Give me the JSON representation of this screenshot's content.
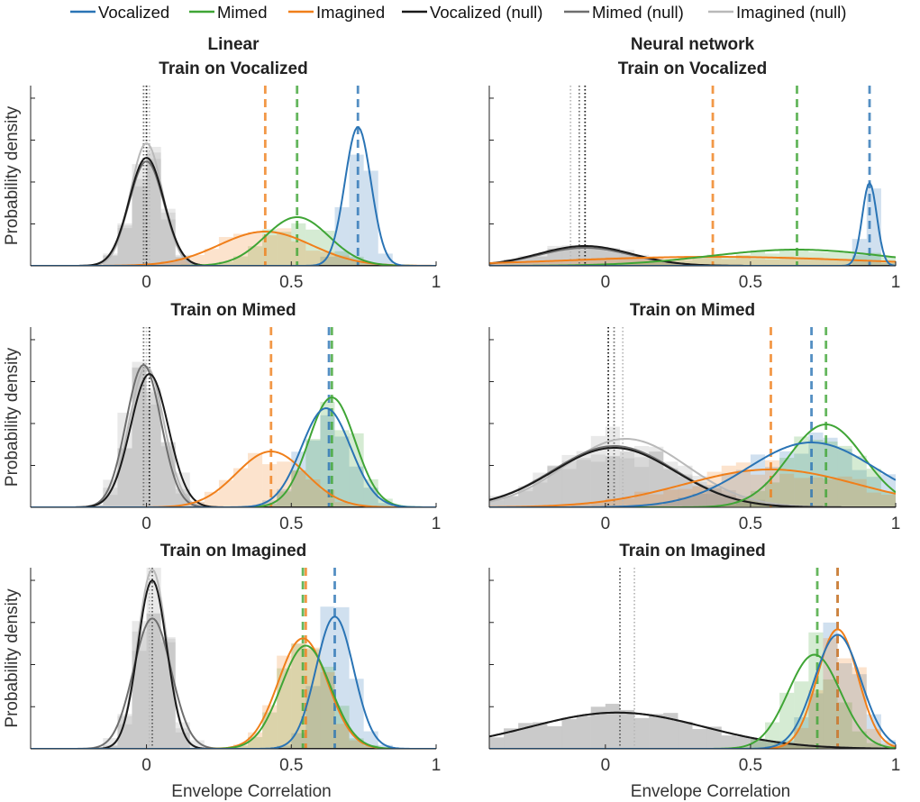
{
  "legend": [
    {
      "label": "Vocalized",
      "color": "#2a74b5"
    },
    {
      "label": "Mimed",
      "color": "#3fa535"
    },
    {
      "label": "Imagined",
      "color": "#f07f1a"
    },
    {
      "label": "Vocalized (null)",
      "color": "#1a1a1a"
    },
    {
      "label": "Mimed (null)",
      "color": "#6e6e6e"
    },
    {
      "label": "Imagined (null)",
      "color": "#b9b9b9"
    }
  ],
  "column_titles": [
    "Linear",
    "Neural network"
  ],
  "row_titles": [
    "Train on Vocalized",
    "Train on Mimed",
    "Train on Imagined"
  ],
  "y_label": "Probability density",
  "x_label": "Envelope Correlation",
  "chart_data": [
    {
      "type": "density",
      "model": "Linear",
      "train": "Vocalized",
      "xlim": [
        -0.4,
        1.0
      ],
      "ylim": [
        0,
        1.0
      ],
      "xticks": [
        0,
        0.5,
        1
      ],
      "xtick_labels": [
        "0",
        "0.5",
        "1"
      ],
      "series": [
        {
          "name": "Vocalized",
          "mean": 0.73,
          "sd": 0.045,
          "peak": 0.77,
          "dashed": 0.73
        },
        {
          "name": "Mimed",
          "mean": 0.52,
          "sd": 0.11,
          "peak": 0.27,
          "dashed": 0.52
        },
        {
          "name": "Imagined",
          "mean": 0.41,
          "sd": 0.16,
          "peak": 0.19,
          "dashed": 0.41
        },
        {
          "name": "Vocalized (null)",
          "mean": 0.0,
          "sd": 0.06,
          "peak": 0.6,
          "dotted": 0.0
        },
        {
          "name": "Mimed (null)",
          "mean": 0.0,
          "sd": 0.06,
          "peak": 0.58,
          "dotted": -0.01
        },
        {
          "name": "Imagined (null)",
          "mean": 0.0,
          "sd": 0.055,
          "peak": 0.68,
          "dotted": 0.01
        }
      ]
    },
    {
      "type": "density",
      "model": "Neural network",
      "train": "Vocalized",
      "xlim": [
        -0.4,
        1.0
      ],
      "ylim": [
        0,
        1.0
      ],
      "xticks": [
        0,
        0.5,
        1
      ],
      "xtick_labels": [
        "0",
        "0.5",
        "1"
      ],
      "series": [
        {
          "name": "Vocalized",
          "mean": 0.91,
          "sd": 0.025,
          "peak": 0.46,
          "dashed": 0.91
        },
        {
          "name": "Mimed",
          "mean": 0.66,
          "sd": 0.3,
          "peak": 0.09,
          "dashed": 0.66
        },
        {
          "name": "Imagined",
          "mean": 0.37,
          "sd": 0.5,
          "peak": 0.05,
          "dashed": 0.37
        },
        {
          "name": "Vocalized (null)",
          "mean": -0.07,
          "sd": 0.16,
          "peak": 0.11,
          "dotted": -0.07
        },
        {
          "name": "Mimed (null)",
          "mean": -0.07,
          "sd": 0.16,
          "peak": 0.1,
          "dotted": -0.09
        },
        {
          "name": "Imagined (null)",
          "mean": -0.07,
          "sd": 0.16,
          "peak": 0.1,
          "dotted": -0.12
        }
      ]
    },
    {
      "type": "density",
      "model": "Linear",
      "train": "Mimed",
      "xlim": [
        -0.4,
        1.0
      ],
      "ylim": [
        0,
        1.0
      ],
      "xticks": [
        0,
        0.5,
        1
      ],
      "xtick_labels": [
        "0",
        "0.5",
        "1"
      ],
      "series": [
        {
          "name": "Vocalized",
          "mean": 0.62,
          "sd": 0.085,
          "peak": 0.55,
          "dashed": 0.63
        },
        {
          "name": "Mimed",
          "mean": 0.64,
          "sd": 0.08,
          "peak": 0.61,
          "dashed": 0.64
        },
        {
          "name": "Imagined",
          "mean": 0.43,
          "sd": 0.12,
          "peak": 0.31,
          "dashed": 0.43
        },
        {
          "name": "Vocalized (null)",
          "mean": 0.01,
          "sd": 0.065,
          "peak": 0.74,
          "dotted": 0.01
        },
        {
          "name": "Mimed (null)",
          "mean": -0.01,
          "sd": 0.06,
          "peak": 0.79,
          "dotted": -0.01
        },
        {
          "name": "Imagined (null)",
          "mean": 0.0,
          "sd": 0.06,
          "peak": 0.78,
          "dotted": 0.0
        }
      ]
    },
    {
      "type": "density",
      "model": "Neural network",
      "train": "Mimed",
      "xlim": [
        -0.4,
        1.0
      ],
      "ylim": [
        0,
        1.0
      ],
      "xticks": [
        0,
        0.5,
        1
      ],
      "xtick_labels": [
        "0",
        "0.5",
        "1"
      ],
      "series": [
        {
          "name": "Vocalized",
          "mean": 0.71,
          "sd": 0.22,
          "peak": 0.36,
          "dashed": 0.71
        },
        {
          "name": "Mimed",
          "mean": 0.76,
          "sd": 0.13,
          "peak": 0.46,
          "dashed": 0.76
        },
        {
          "name": "Imagined",
          "mean": 0.57,
          "sd": 0.3,
          "peak": 0.21,
          "dashed": 0.57
        },
        {
          "name": "Vocalized (null)",
          "mean": 0.03,
          "sd": 0.21,
          "peak": 0.33,
          "dotted": 0.01
        },
        {
          "name": "Mimed (null)",
          "mean": 0.03,
          "sd": 0.21,
          "peak": 0.34,
          "dotted": 0.03
        },
        {
          "name": "Imagined (null)",
          "mean": 0.07,
          "sd": 0.21,
          "peak": 0.38,
          "dotted": 0.06
        }
      ]
    },
    {
      "type": "density",
      "model": "Linear",
      "train": "Imagined",
      "xlim": [
        -0.4,
        1.0
      ],
      "ylim": [
        0,
        1.0
      ],
      "xticks": [
        0,
        0.5,
        1
      ],
      "xtick_labels": [
        "0",
        "0.5",
        "1"
      ],
      "series": [
        {
          "name": "Vocalized",
          "mean": 0.65,
          "sd": 0.065,
          "peak": 0.73,
          "dashed": 0.65
        },
        {
          "name": "Mimed",
          "mean": 0.55,
          "sd": 0.085,
          "peak": 0.57,
          "dashed": 0.54
        },
        {
          "name": "Imagined",
          "mean": 0.54,
          "sd": 0.085,
          "peak": 0.61,
          "dashed": 0.55
        },
        {
          "name": "Vocalized (null)",
          "mean": 0.02,
          "sd": 0.05,
          "peak": 0.93,
          "dotted": 0.02
        },
        {
          "name": "Mimed (null)",
          "mean": 0.02,
          "sd": 0.065,
          "peak": 0.72,
          "dotted": 0.02
        },
        {
          "name": "Imagined (null)",
          "mean": 0.02,
          "sd": 0.05,
          "peak": 0.99,
          "dotted": 0.01
        }
      ]
    },
    {
      "type": "density",
      "model": "Neural network",
      "train": "Imagined",
      "xlim": [
        -0.4,
        1.0
      ],
      "ylim": [
        0,
        1.0
      ],
      "xticks": [
        0,
        0.5,
        1
      ],
      "xtick_labels": [
        "0",
        "0.5",
        "1"
      ],
      "series": [
        {
          "name": "Vocalized",
          "mean": 0.8,
          "sd": 0.08,
          "peak": 0.63,
          "dashed": 0.8
        },
        {
          "name": "Mimed",
          "mean": 0.72,
          "sd": 0.09,
          "peak": 0.52,
          "dashed": 0.73
        },
        {
          "name": "Imagined",
          "mean": 0.8,
          "sd": 0.07,
          "peak": 0.66,
          "dashed": 0.8
        },
        {
          "name": "Vocalized (null)",
          "mean": 0.04,
          "sd": 0.3,
          "peak": 0.2,
          "dotted": 0.05
        },
        {
          "name": "Mimed (null)",
          "mean": 0.04,
          "sd": 0.3,
          "peak": 0.2,
          "dotted": 0.05
        },
        {
          "name": "Imagined (null)",
          "mean": 0.04,
          "sd": 0.3,
          "peak": 0.2,
          "dotted": 0.1
        }
      ]
    }
  ]
}
